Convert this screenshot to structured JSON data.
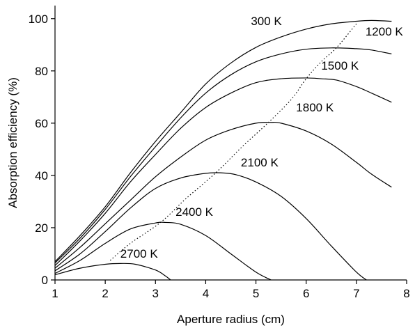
{
  "chart_data": {
    "type": "line",
    "xlabel": "Aperture radius (cm)",
    "ylabel": "Absorption efficiency (%)",
    "xlim": [
      1,
      8
    ],
    "ylim": [
      0,
      105
    ],
    "xticks": [
      1,
      2,
      3,
      4,
      5,
      6,
      7,
      8
    ],
    "yticks": [
      0,
      20,
      40,
      60,
      80,
      100
    ],
    "grid": false,
    "series": [
      {
        "name": "300 K",
        "x": [
          1,
          1.5,
          2,
          2.5,
          3,
          3.5,
          4,
          4.5,
          5,
          5.5,
          6,
          6.5,
          7,
          7.3,
          7.7
        ],
        "y": [
          7,
          17,
          28,
          41,
          53,
          64,
          75,
          83,
          89,
          93,
          96,
          98,
          99,
          99.3,
          99
        ]
      },
      {
        "name": "1200 K",
        "x": [
          1,
          1.5,
          2,
          2.5,
          3,
          3.5,
          4,
          4.5,
          5,
          5.5,
          6,
          6.5,
          7,
          7.3,
          7.7
        ],
        "y": [
          6.5,
          16,
          27,
          39.5,
          51,
          62,
          71.5,
          78.5,
          83.5,
          86.5,
          88.3,
          88.8,
          88.5,
          88,
          86.5
        ]
      },
      {
        "name": "1500 K",
        "x": [
          1,
          1.5,
          2,
          2.5,
          3,
          3.5,
          4,
          4.5,
          5,
          5.5,
          6,
          6.3,
          6.6,
          7,
          7.3,
          7.7
        ],
        "y": [
          5.5,
          15,
          25.5,
          37.5,
          48,
          58,
          66,
          71.5,
          75.5,
          77,
          77.3,
          77,
          76.5,
          74,
          71.5,
          68
        ]
      },
      {
        "name": "1800 K",
        "x": [
          1,
          1.5,
          2,
          2.5,
          3,
          3.5,
          4,
          4.5,
          5,
          5.3,
          5.5,
          6,
          6.5,
          7,
          7.3,
          7.7
        ],
        "y": [
          4.5,
          12.5,
          21.5,
          30.5,
          39.5,
          47,
          53.5,
          57.5,
          60,
          60.3,
          60,
          57,
          52,
          45,
          40.5,
          35.5
        ]
      },
      {
        "name": "2100 K",
        "x": [
          1,
          1.5,
          2,
          2.5,
          3,
          3.5,
          4,
          4.3,
          4.6,
          5,
          5.5,
          6,
          6.5,
          7,
          7.2
        ],
        "y": [
          3.5,
          10,
          18.5,
          27.5,
          35,
          39,
          40.8,
          41,
          40.3,
          37.5,
          32,
          23.5,
          13,
          3,
          0
        ]
      },
      {
        "name": "2400 K",
        "x": [
          1,
          1.5,
          2,
          2.5,
          3,
          3.2,
          3.5,
          4,
          4.5,
          5,
          5.3
        ],
        "y": [
          2.5,
          7.5,
          14,
          19.5,
          21.8,
          22,
          21.3,
          17,
          10,
          3,
          0
        ]
      },
      {
        "name": "2700 K",
        "x": [
          1,
          1.5,
          2,
          2.3,
          2.6,
          3,
          3.2,
          3.3
        ],
        "y": [
          2,
          4.5,
          6,
          6.3,
          6,
          3.8,
          1.5,
          0
        ]
      }
    ],
    "optimum_locus": {
      "style": "dotted",
      "x": [
        2.1,
        2.5,
        3.1,
        3.6,
        4.2,
        4.7,
        5.25,
        5.7,
        6.0,
        6.3,
        6.6,
        7.0
      ],
      "y": [
        7.5,
        14,
        22,
        31,
        41,
        50.5,
        60.3,
        69,
        77,
        83.5,
        88.8,
        98
      ]
    },
    "labels": [
      {
        "text": "300 K",
        "series": "300 K",
        "x": 4.9,
        "y": 97.5
      },
      {
        "text": "1200 K",
        "series": "1200 K",
        "x": 7.18,
        "y": 93.5
      },
      {
        "text": "1500 K",
        "series": "1500 K",
        "x": 6.3,
        "y": 80.5
      },
      {
        "text": "1800 K",
        "series": "1800 K",
        "x": 5.8,
        "y": 64.5
      },
      {
        "text": "2100 K",
        "series": "2100 K",
        "x": 4.7,
        "y": 43.5
      },
      {
        "text": "2400 K",
        "series": "2400 K",
        "x": 3.4,
        "y": 24.5
      },
      {
        "text": "2700 K",
        "series": "2700 K",
        "x": 2.3,
        "y": 8.5
      }
    ]
  }
}
